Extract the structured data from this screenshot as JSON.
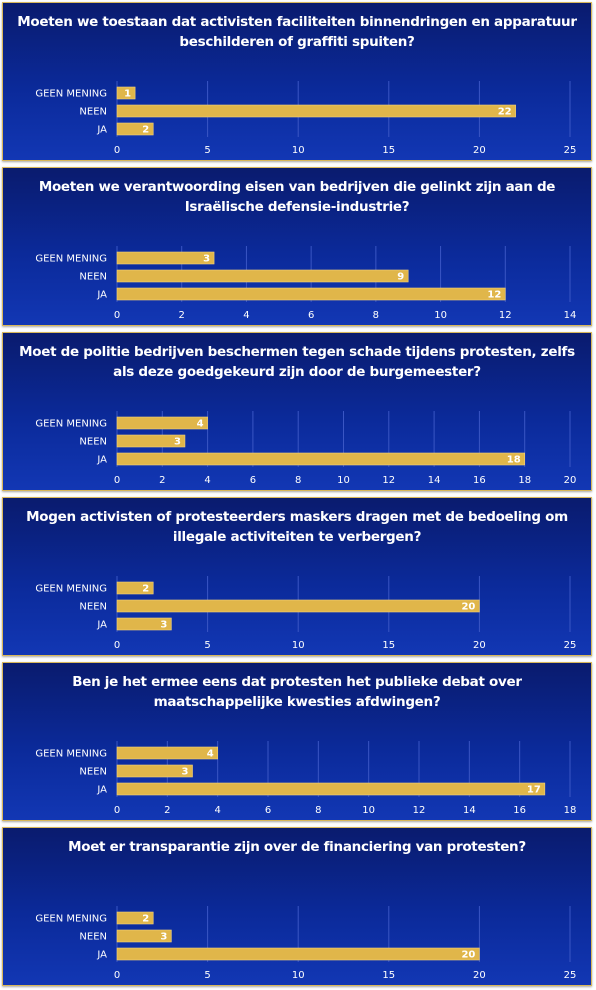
{
  "chart_data": [
    {
      "type": "bar",
      "orientation": "horizontal",
      "title": "Moeten we toestaan dat activisten faciliteiten binnendringen en apparatuur beschilderen of graffiti spuiten?",
      "categories": [
        "GEEN MENING",
        "NEEN",
        "JA"
      ],
      "values": [
        1,
        22,
        2
      ],
      "xlim": [
        0,
        25
      ],
      "xticks": [
        0,
        5,
        10,
        15,
        20,
        25
      ],
      "grid": true
    },
    {
      "type": "bar",
      "orientation": "horizontal",
      "title": "Moeten we verantwoording eisen van bedrijven die gelinkt zijn aan de Israëlische defensie-industrie?",
      "categories": [
        "GEEN MENING",
        "NEEN",
        "JA"
      ],
      "values": [
        3,
        9,
        12
      ],
      "xlim": [
        0,
        14
      ],
      "xticks": [
        0,
        2,
        4,
        6,
        8,
        10,
        12,
        14
      ],
      "grid": true
    },
    {
      "type": "bar",
      "orientation": "horizontal",
      "title": "Moet de politie bedrijven beschermen tegen schade tijdens protesten, zelfs als deze goedgekeurd zijn door de burgemeester?",
      "categories": [
        "GEEN MENING",
        "NEEN",
        "JA"
      ],
      "values": [
        4,
        3,
        18
      ],
      "xlim": [
        0,
        20
      ],
      "xticks": [
        0,
        2,
        4,
        6,
        8,
        10,
        12,
        14,
        16,
        18,
        20
      ],
      "grid": true
    },
    {
      "type": "bar",
      "orientation": "horizontal",
      "title": "Mogen activisten of protesteerders maskers dragen met de bedoeling om illegale activiteiten te verbergen?",
      "categories": [
        "GEEN MENING",
        "NEEN",
        "JA"
      ],
      "values": [
        2,
        20,
        3
      ],
      "xlim": [
        0,
        25
      ],
      "xticks": [
        0,
        5,
        10,
        15,
        20,
        25
      ],
      "grid": true
    },
    {
      "type": "bar",
      "orientation": "horizontal",
      "title": "Ben je het ermee eens dat protesten het publieke debat over maatschappelijke kwesties afdwingen?",
      "categories": [
        "GEEN MENING",
        "NEEN",
        "JA"
      ],
      "values": [
        4,
        3,
        17
      ],
      "xlim": [
        0,
        18
      ],
      "xticks": [
        0,
        2,
        4,
        6,
        8,
        10,
        12,
        14,
        16,
        18
      ],
      "grid": true
    },
    {
      "type": "bar",
      "orientation": "horizontal",
      "title": "Moet er transparantie zijn over de financiering van protesten?",
      "categories": [
        "GEEN MENING",
        "NEEN",
        "JA"
      ],
      "values": [
        2,
        3,
        20
      ],
      "xlim": [
        0,
        25
      ],
      "xticks": [
        0,
        5,
        10,
        15,
        20,
        25
      ],
      "grid": true
    }
  ],
  "colors": {
    "bar": "#e0b64a",
    "bar_edge": "#f3d27a",
    "panel_border": "#d8b75a",
    "grid": "#3a56c4",
    "text": "#ffffff"
  }
}
